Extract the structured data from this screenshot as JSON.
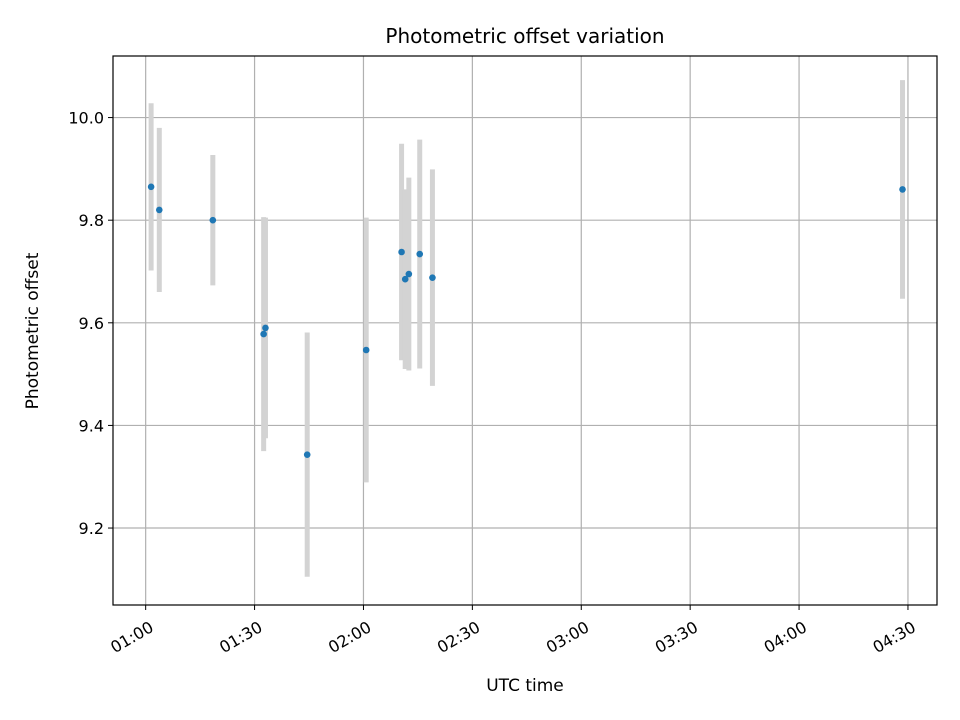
{
  "chart_data": {
    "type": "scatter",
    "title": "Photometric offset variation",
    "xlabel": "UTC time",
    "ylabel": "Photometric offset",
    "x_axis_type": "time",
    "xlim": [
      "00:51",
      "04:38"
    ],
    "ylim": [
      9.05,
      10.12
    ],
    "x_ticks": [
      "01:00",
      "01:30",
      "02:00",
      "02:30",
      "03:00",
      "03:30",
      "04:00",
      "04:30"
    ],
    "y_ticks": [
      9.2,
      9.4,
      9.6,
      9.8,
      10.0
    ],
    "y_tick_labels": [
      "9.2",
      "9.4",
      "9.6",
      "9.8",
      "10.0"
    ],
    "grid": true,
    "marker_color": "#1f77b4",
    "errorbar_color": "#d3d3d3",
    "points": [
      {
        "x": "01:01:30",
        "y": 9.865,
        "yerr": 0.163
      },
      {
        "x": "01:03:45",
        "y": 9.82,
        "yerr": 0.16
      },
      {
        "x": "01:18:30",
        "y": 9.8,
        "yerr": 0.127
      },
      {
        "x": "01:32:30",
        "y": 9.578,
        "yerr": 0.228
      },
      {
        "x": "01:33:00",
        "y": 9.59,
        "yerr": 0.215
      },
      {
        "x": "01:44:30",
        "y": 9.343,
        "yerr": 0.238
      },
      {
        "x": "02:00:45",
        "y": 9.547,
        "yerr": 0.258
      },
      {
        "x": "02:10:30",
        "y": 9.738,
        "yerr": 0.211
      },
      {
        "x": "02:11:30",
        "y": 9.685,
        "yerr": 0.175
      },
      {
        "x": "02:12:30",
        "y": 9.695,
        "yerr": 0.188
      },
      {
        "x": "02:15:30",
        "y": 9.734,
        "yerr": 0.223
      },
      {
        "x": "02:19:00",
        "y": 9.688,
        "yerr": 0.211
      },
      {
        "x": "04:28:30",
        "y": 9.86,
        "yerr": 0.213
      }
    ]
  }
}
